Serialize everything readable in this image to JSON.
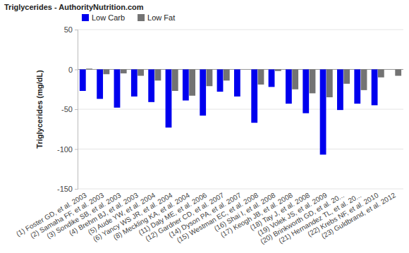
{
  "chart_data": {
    "type": "bar",
    "title": "Triglycerides - AuthorityNutrition.com",
    "y_label": "Triglycerides (mg/dL)",
    "categories": [
      "(1) Foster GD, et al. 2003",
      "(2) Samaha FF, et al. 2003",
      "(3) Sondike SB, et al. 2003",
      "(4) Brehm BJ, et al. 2003",
      "(5) Aude YW, et al. 2004",
      "(6) Yancy WS JR, et al. 2004",
      "(8) Meckling KA, et al. 2004",
      "(11) Daly ME, et al. 2006",
      "(12) Gardner CD, et al. 2007",
      "(14) Dyson PA, et al. 2007",
      "(15) Westman EC, et al. 2008",
      "(16) Shai I, et al. 2008",
      "(17) Keogh JB, et al. 2008",
      "(18) Tay J, et al. 2008",
      "(19) Volek JS, et al. 2009",
      "(20) Brinkworth GD, et al. 20...",
      "(21) Hernandez TL, et al. 20...",
      "(22) Krebs NF, et al. 2010",
      "(23) Guldbrand, et al. 2012"
    ],
    "series": [
      {
        "name": "Low Carb",
        "color": "#0000ee",
        "values": [
          -27,
          -37,
          -48,
          -34,
          -41,
          -73,
          -39,
          -58,
          -28,
          -34,
          -67,
          -22,
          -43,
          -55,
          -107,
          -51,
          -43,
          -45,
          null
        ]
      },
      {
        "name": "Low Fat",
        "color": "#737373",
        "values": [
          1,
          -6,
          -5,
          -8,
          -14,
          -27,
          -33,
          -21,
          -14,
          null,
          -19,
          -2,
          -25,
          -30,
          -35,
          -18,
          -26,
          -10,
          -8
        ]
      }
    ],
    "ylim": [
      -150,
      50
    ],
    "yticks": [
      -150,
      -100,
      -50,
      0,
      50
    ],
    "grid": true,
    "legend": "top-left"
  }
}
